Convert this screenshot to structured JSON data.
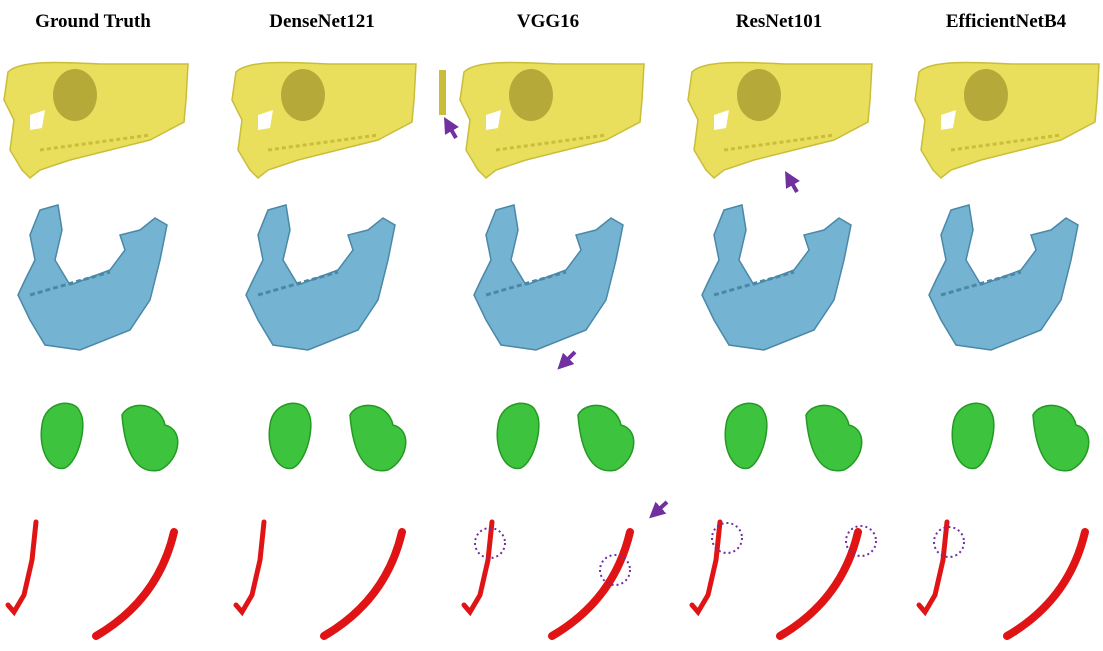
{
  "columns": [
    "Ground Truth",
    "DenseNet121",
    "VGG16",
    "ResNet101",
    "EfficientNetB4"
  ]
}
